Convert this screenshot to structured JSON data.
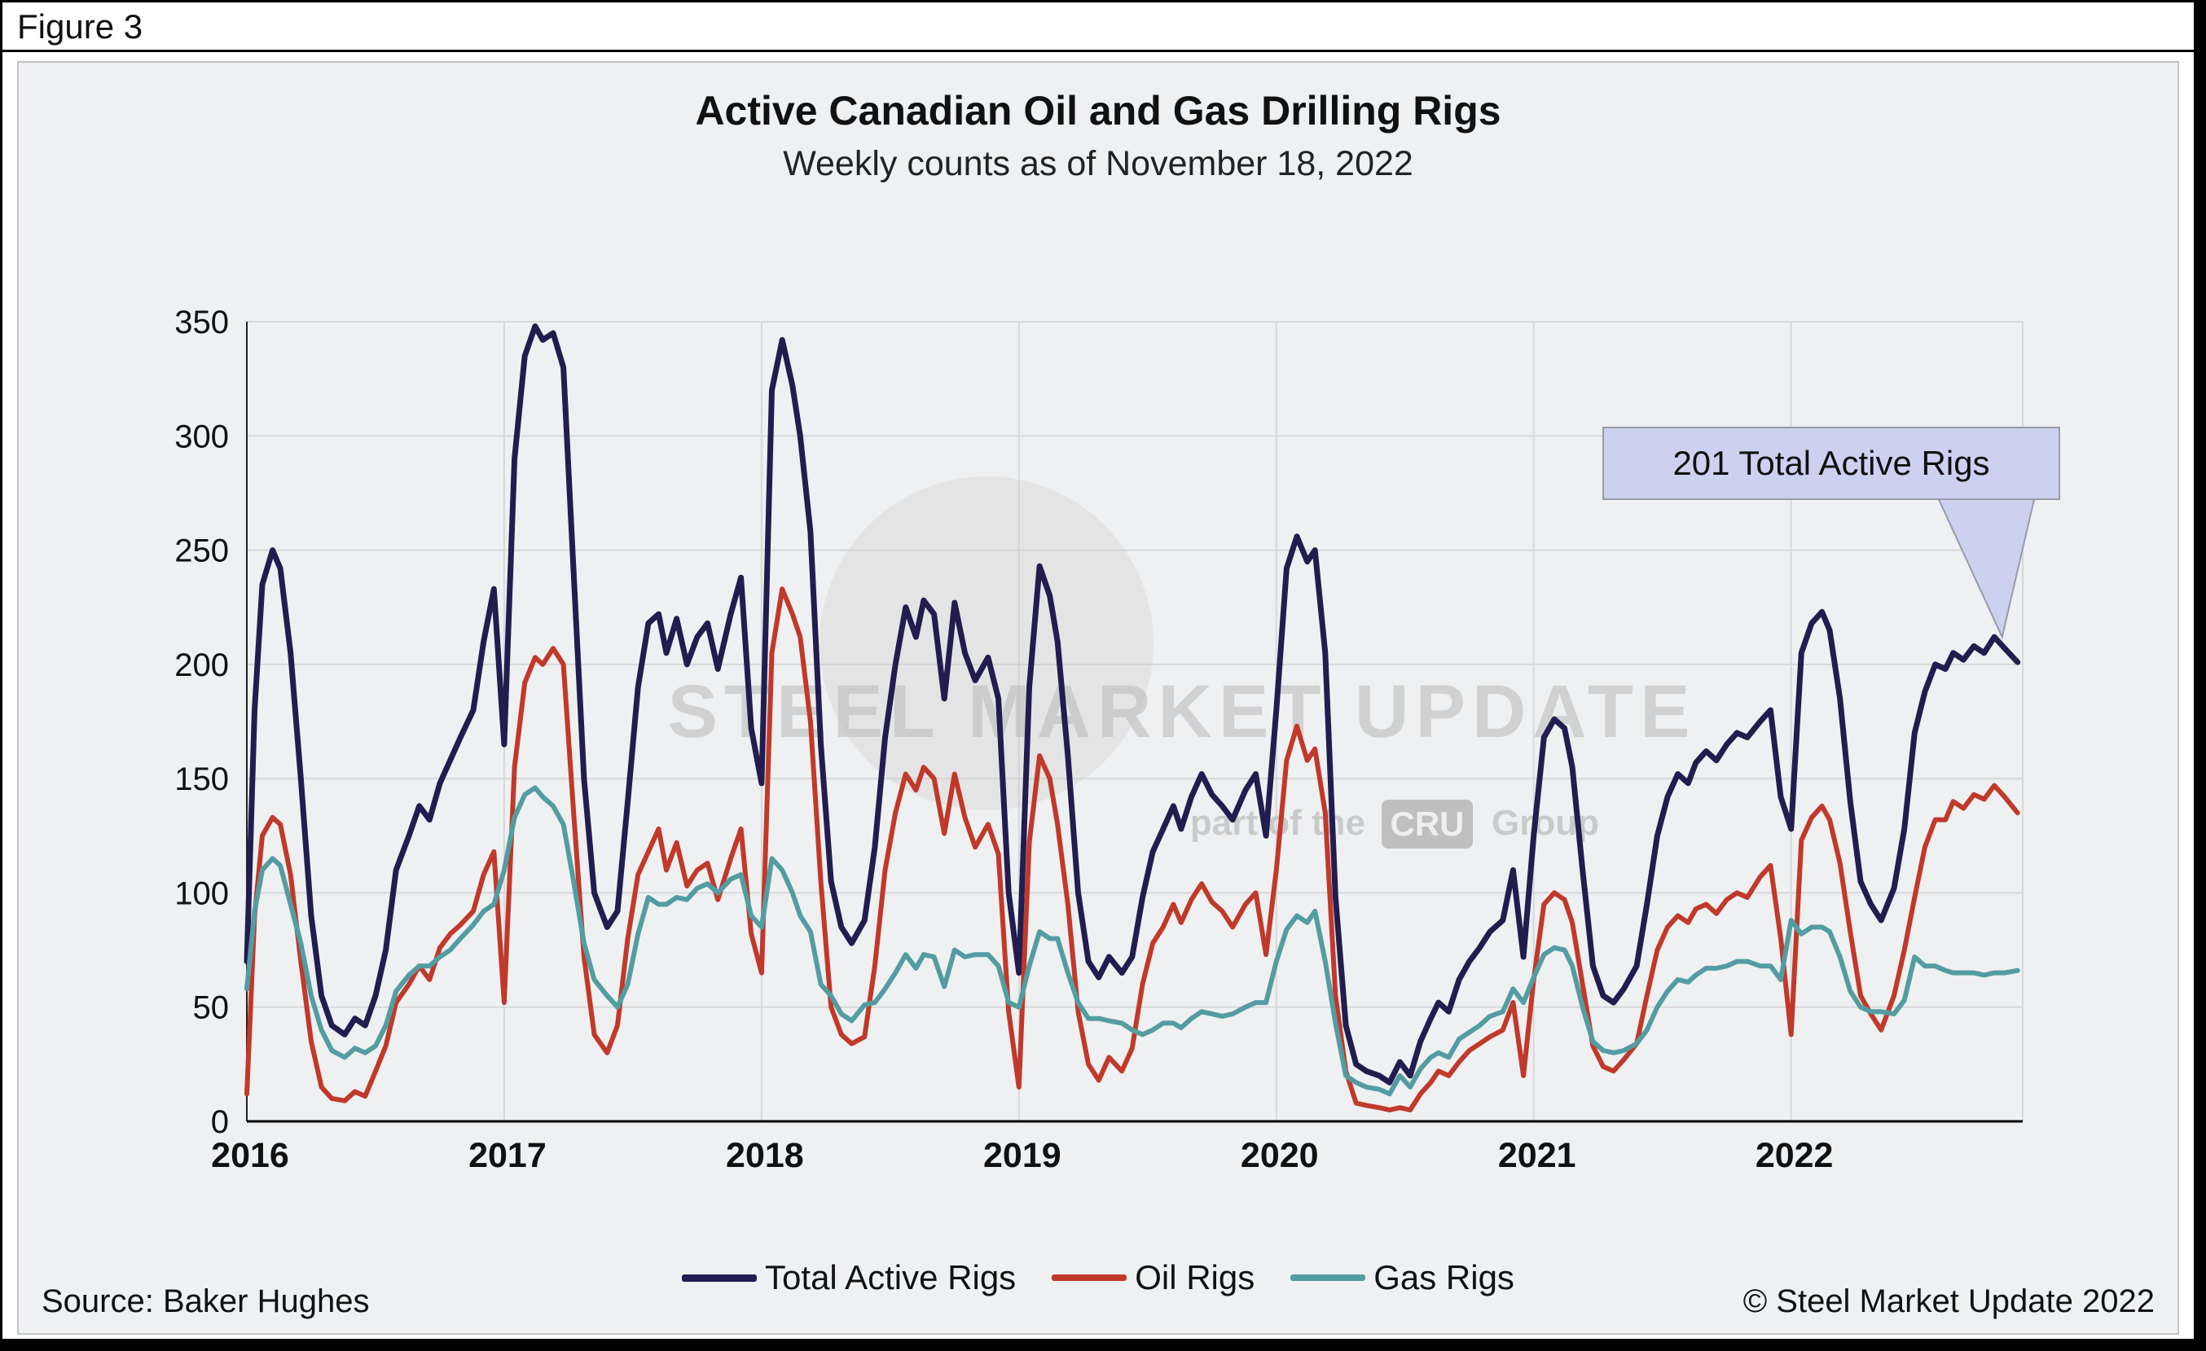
{
  "figure_label": "Figure 3",
  "footer": {
    "source": "Source: Baker Hughes",
    "copyright": "© Steel Market Update 2022"
  },
  "watermark": {
    "line1": "STEEL MARKET UPDATE",
    "line2_prefix": "part of the",
    "line2_badge": "CRU",
    "line2_suffix": "Group"
  },
  "chart_data": {
    "type": "line",
    "title": "Active Canadian Oil and Gas Drilling Rigs",
    "subtitle": "Weekly counts as of November 18, 2022",
    "xlabel": "",
    "ylabel": "",
    "xlim": [
      2016,
      2022.9
    ],
    "ylim": [
      0,
      350
    ],
    "x_ticks": [
      2016,
      2017,
      2018,
      2019,
      2020,
      2021,
      2022
    ],
    "y_ticks": [
      0,
      50,
      100,
      150,
      200,
      250,
      300,
      350
    ],
    "grid": true,
    "legend_position": "bottom",
    "annotation": {
      "text": "201 Total Active Rigs",
      "x": 2022.88,
      "y": 201
    },
    "series": [
      {
        "name": "Total Active Rigs",
        "color": "#221c4f",
        "width": 7
      },
      {
        "name": "Oil Rigs",
        "color": "#c0392b",
        "width": 6
      },
      {
        "name": "Gas Rigs",
        "color": "#539da2",
        "width": 6
      }
    ],
    "points_format": [
      "year_fraction",
      "total_active_rigs",
      "oil_rigs",
      "gas_rigs"
    ],
    "points": [
      [
        2016.0,
        70,
        12,
        58
      ],
      [
        2016.03,
        180,
        90,
        92
      ],
      [
        2016.06,
        235,
        125,
        110
      ],
      [
        2016.1,
        250,
        133,
        115
      ],
      [
        2016.13,
        242,
        130,
        112
      ],
      [
        2016.17,
        205,
        108,
        95
      ],
      [
        2016.21,
        150,
        70,
        78
      ],
      [
        2016.25,
        90,
        35,
        55
      ],
      [
        2016.29,
        55,
        15,
        40
      ],
      [
        2016.33,
        42,
        10,
        31
      ],
      [
        2016.38,
        38,
        9,
        28
      ],
      [
        2016.42,
        45,
        13,
        32
      ],
      [
        2016.46,
        42,
        11,
        30
      ],
      [
        2016.5,
        55,
        22,
        33
      ],
      [
        2016.54,
        75,
        33,
        42
      ],
      [
        2016.58,
        110,
        52,
        57
      ],
      [
        2016.63,
        125,
        60,
        64
      ],
      [
        2016.67,
        138,
        68,
        68
      ],
      [
        2016.71,
        132,
        62,
        68
      ],
      [
        2016.75,
        148,
        76,
        72
      ],
      [
        2016.79,
        158,
        82,
        75
      ],
      [
        2016.83,
        168,
        86,
        80
      ],
      [
        2016.88,
        180,
        92,
        86
      ],
      [
        2016.92,
        210,
        108,
        92
      ],
      [
        2016.96,
        233,
        118,
        95
      ],
      [
        2017.0,
        165,
        52,
        110
      ],
      [
        2017.04,
        290,
        155,
        133
      ],
      [
        2017.08,
        335,
        192,
        143
      ],
      [
        2017.12,
        348,
        203,
        146
      ],
      [
        2017.15,
        342,
        200,
        142
      ],
      [
        2017.19,
        345,
        207,
        138
      ],
      [
        2017.23,
        330,
        200,
        130
      ],
      [
        2017.27,
        240,
        135,
        105
      ],
      [
        2017.31,
        150,
        72,
        78
      ],
      [
        2017.35,
        100,
        38,
        62
      ],
      [
        2017.4,
        85,
        30,
        55
      ],
      [
        2017.44,
        92,
        42,
        50
      ],
      [
        2017.48,
        140,
        80,
        60
      ],
      [
        2017.52,
        190,
        108,
        82
      ],
      [
        2017.56,
        218,
        118,
        98
      ],
      [
        2017.6,
        222,
        128,
        95
      ],
      [
        2017.63,
        205,
        110,
        95
      ],
      [
        2017.67,
        220,
        122,
        98
      ],
      [
        2017.71,
        200,
        103,
        97
      ],
      [
        2017.75,
        212,
        110,
        102
      ],
      [
        2017.79,
        218,
        113,
        104
      ],
      [
        2017.83,
        198,
        97,
        100
      ],
      [
        2017.88,
        222,
        115,
        106
      ],
      [
        2017.92,
        238,
        128,
        108
      ],
      [
        2017.96,
        172,
        82,
        90
      ],
      [
        2018.0,
        148,
        65,
        85
      ],
      [
        2018.04,
        320,
        205,
        115
      ],
      [
        2018.08,
        342,
        233,
        110
      ],
      [
        2018.12,
        322,
        222,
        100
      ],
      [
        2018.15,
        300,
        212,
        90
      ],
      [
        2018.19,
        258,
        175,
        83
      ],
      [
        2018.23,
        165,
        105,
        60
      ],
      [
        2018.27,
        105,
        50,
        55
      ],
      [
        2018.31,
        85,
        38,
        47
      ],
      [
        2018.35,
        78,
        34,
        44
      ],
      [
        2018.4,
        88,
        37,
        51
      ],
      [
        2018.44,
        120,
        68,
        52
      ],
      [
        2018.48,
        168,
        110,
        58
      ],
      [
        2018.52,
        200,
        135,
        65
      ],
      [
        2018.56,
        225,
        152,
        73
      ],
      [
        2018.6,
        212,
        145,
        67
      ],
      [
        2018.63,
        228,
        155,
        73
      ],
      [
        2018.67,
        222,
        150,
        72
      ],
      [
        2018.71,
        185,
        126,
        59
      ],
      [
        2018.75,
        227,
        152,
        75
      ],
      [
        2018.79,
        205,
        133,
        72
      ],
      [
        2018.83,
        193,
        120,
        73
      ],
      [
        2018.88,
        203,
        130,
        73
      ],
      [
        2018.92,
        185,
        117,
        68
      ],
      [
        2018.96,
        100,
        48,
        52
      ],
      [
        2019.0,
        65,
        15,
        50
      ],
      [
        2019.04,
        190,
        122,
        68
      ],
      [
        2019.08,
        243,
        160,
        83
      ],
      [
        2019.12,
        230,
        150,
        80
      ],
      [
        2019.15,
        210,
        130,
        80
      ],
      [
        2019.19,
        160,
        95,
        65
      ],
      [
        2019.23,
        100,
        48,
        52
      ],
      [
        2019.27,
        70,
        25,
        45
      ],
      [
        2019.31,
        63,
        18,
        45
      ],
      [
        2019.35,
        72,
        28,
        44
      ],
      [
        2019.4,
        65,
        22,
        43
      ],
      [
        2019.44,
        72,
        32,
        40
      ],
      [
        2019.48,
        98,
        60,
        38
      ],
      [
        2019.52,
        118,
        78,
        40
      ],
      [
        2019.56,
        128,
        85,
        43
      ],
      [
        2019.6,
        138,
        95,
        43
      ],
      [
        2019.63,
        128,
        87,
        41
      ],
      [
        2019.67,
        142,
        97,
        45
      ],
      [
        2019.71,
        152,
        104,
        48
      ],
      [
        2019.75,
        143,
        96,
        47
      ],
      [
        2019.79,
        138,
        92,
        46
      ],
      [
        2019.83,
        132,
        85,
        47
      ],
      [
        2019.88,
        145,
        95,
        50
      ],
      [
        2019.92,
        152,
        100,
        52
      ],
      [
        2019.96,
        125,
        73,
        52
      ],
      [
        2020.0,
        180,
        110,
        70
      ],
      [
        2020.04,
        242,
        158,
        84
      ],
      [
        2020.08,
        256,
        173,
        90
      ],
      [
        2020.12,
        245,
        158,
        87
      ],
      [
        2020.15,
        250,
        163,
        92
      ],
      [
        2020.19,
        205,
        135,
        70
      ],
      [
        2020.23,
        98,
        55,
        43
      ],
      [
        2020.27,
        42,
        22,
        20
      ],
      [
        2020.31,
        25,
        8,
        17
      ],
      [
        2020.35,
        22,
        7,
        15
      ],
      [
        2020.4,
        20,
        6,
        14
      ],
      [
        2020.44,
        17,
        5,
        12
      ],
      [
        2020.48,
        26,
        6,
        20
      ],
      [
        2020.52,
        20,
        5,
        15
      ],
      [
        2020.56,
        35,
        12,
        23
      ],
      [
        2020.6,
        45,
        17,
        28
      ],
      [
        2020.63,
        52,
        22,
        30
      ],
      [
        2020.67,
        48,
        20,
        28
      ],
      [
        2020.71,
        62,
        26,
        36
      ],
      [
        2020.75,
        70,
        31,
        39
      ],
      [
        2020.79,
        76,
        34,
        42
      ],
      [
        2020.83,
        83,
        37,
        46
      ],
      [
        2020.88,
        88,
        40,
        48
      ],
      [
        2020.92,
        110,
        52,
        58
      ],
      [
        2020.96,
        72,
        20,
        52
      ],
      [
        2021.0,
        125,
        62,
        63
      ],
      [
        2021.04,
        168,
        95,
        73
      ],
      [
        2021.08,
        176,
        100,
        76
      ],
      [
        2021.12,
        172,
        97,
        75
      ],
      [
        2021.15,
        155,
        87,
        68
      ],
      [
        2021.19,
        110,
        60,
        50
      ],
      [
        2021.23,
        68,
        33,
        35
      ],
      [
        2021.27,
        55,
        24,
        31
      ],
      [
        2021.31,
        52,
        22,
        30
      ],
      [
        2021.35,
        58,
        27,
        31
      ],
      [
        2021.4,
        68,
        34,
        34
      ],
      [
        2021.44,
        95,
        55,
        40
      ],
      [
        2021.48,
        125,
        75,
        50
      ],
      [
        2021.52,
        142,
        85,
        57
      ],
      [
        2021.56,
        152,
        90,
        62
      ],
      [
        2021.6,
        148,
        87,
        61
      ],
      [
        2021.63,
        157,
        93,
        64
      ],
      [
        2021.67,
        162,
        95,
        67
      ],
      [
        2021.71,
        158,
        91,
        67
      ],
      [
        2021.75,
        165,
        97,
        68
      ],
      [
        2021.79,
        170,
        100,
        70
      ],
      [
        2021.83,
        168,
        98,
        70
      ],
      [
        2021.88,
        175,
        107,
        68
      ],
      [
        2021.92,
        180,
        112,
        68
      ],
      [
        2021.96,
        142,
        80,
        62
      ],
      [
        2022.0,
        128,
        38,
        88
      ],
      [
        2022.04,
        205,
        123,
        82
      ],
      [
        2022.08,
        218,
        133,
        85
      ],
      [
        2022.12,
        223,
        138,
        85
      ],
      [
        2022.15,
        215,
        132,
        83
      ],
      [
        2022.19,
        185,
        113,
        72
      ],
      [
        2022.23,
        140,
        83,
        57
      ],
      [
        2022.27,
        105,
        55,
        50
      ],
      [
        2022.31,
        95,
        47,
        48
      ],
      [
        2022.35,
        88,
        40,
        48
      ],
      [
        2022.4,
        102,
        55,
        47
      ],
      [
        2022.44,
        128,
        75,
        53
      ],
      [
        2022.48,
        170,
        98,
        72
      ],
      [
        2022.52,
        188,
        120,
        68
      ],
      [
        2022.56,
        200,
        132,
        68
      ],
      [
        2022.6,
        198,
        132,
        66
      ],
      [
        2022.63,
        205,
        140,
        65
      ],
      [
        2022.67,
        202,
        137,
        65
      ],
      [
        2022.71,
        208,
        143,
        65
      ],
      [
        2022.75,
        205,
        141,
        64
      ],
      [
        2022.79,
        212,
        147,
        65
      ],
      [
        2022.83,
        207,
        142,
        65
      ],
      [
        2022.88,
        201,
        135,
        66
      ]
    ]
  }
}
